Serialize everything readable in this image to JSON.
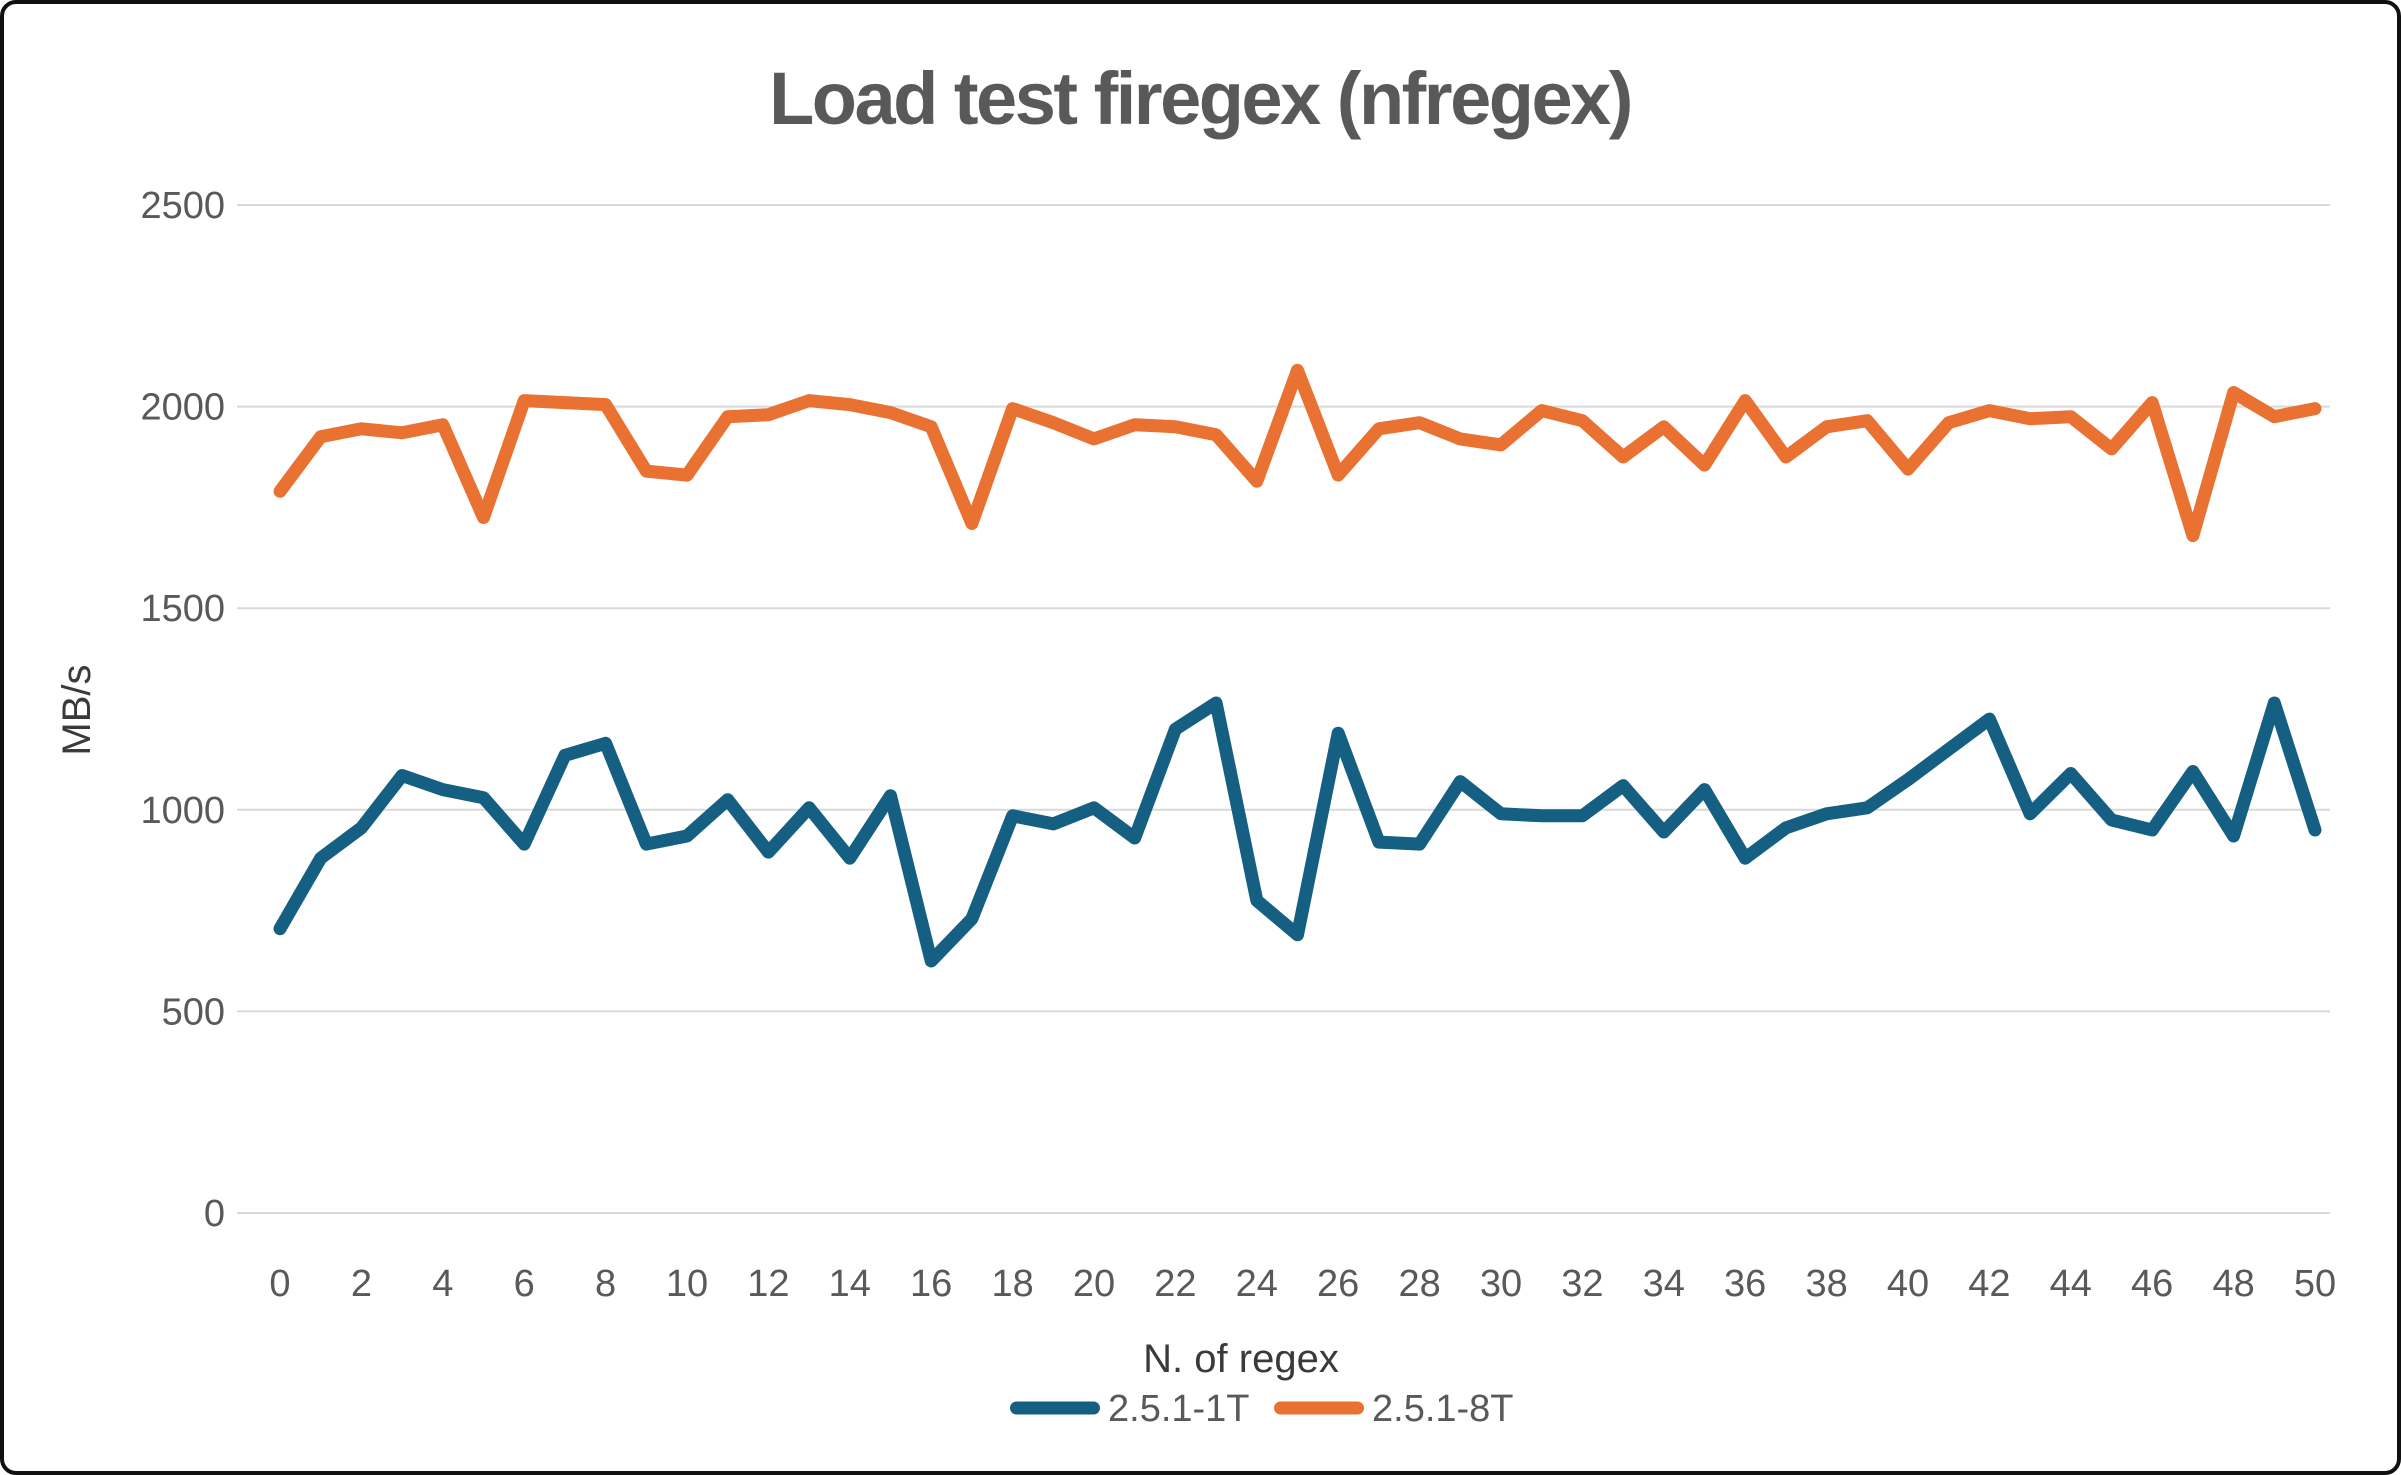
{
  "chart_data": {
    "type": "line",
    "title": "Load test firegex (nfregex)",
    "xlabel": "N. of regex",
    "ylabel": "MB/s",
    "x": [
      0,
      1,
      2,
      3,
      4,
      5,
      6,
      7,
      8,
      9,
      10,
      11,
      12,
      13,
      14,
      15,
      16,
      17,
      18,
      19,
      20,
      21,
      22,
      23,
      24,
      25,
      26,
      27,
      28,
      29,
      30,
      31,
      32,
      33,
      34,
      35,
      36,
      37,
      38,
      39,
      40,
      41,
      42,
      43,
      44,
      45,
      46,
      47,
      48,
      49,
      50
    ],
    "x_tick_labels": [
      0,
      2,
      4,
      6,
      8,
      10,
      12,
      14,
      16,
      18,
      20,
      22,
      24,
      26,
      28,
      30,
      32,
      34,
      36,
      38,
      40,
      42,
      44,
      46,
      48,
      50
    ],
    "y_tick_labels": [
      0,
      500,
      1000,
      1500,
      2000,
      2500
    ],
    "ylim": [
      0,
      2500
    ],
    "grid": "horizontal",
    "gridline_color": "#d9d9d9",
    "background_color": "#ffffff",
    "legend_position": "bottom",
    "series": [
      {
        "name": "2.5.1-1T",
        "color": "#156082",
        "values": [
          705,
          880,
          955,
          1085,
          1050,
          1030,
          915,
          1135,
          1165,
          915,
          935,
          1025,
          895,
          1005,
          880,
          1035,
          625,
          730,
          985,
          965,
          1005,
          930,
          1200,
          1265,
          775,
          690,
          1190,
          920,
          915,
          1070,
          990,
          985,
          985,
          1060,
          945,
          1050,
          880,
          955,
          990,
          1005,
          1075,
          1150,
          1225,
          990,
          1090,
          975,
          950,
          1095,
          935,
          1265,
          950
        ]
      },
      {
        "name": "2.5.1-8T",
        "color": "#e97132",
        "values": [
          1790,
          1925,
          1945,
          1935,
          1955,
          1725,
          2015,
          2010,
          2005,
          1840,
          1830,
          1975,
          1980,
          2015,
          2005,
          1985,
          1950,
          1710,
          1995,
          1960,
          1920,
          1955,
          1950,
          1930,
          1815,
          2090,
          1830,
          1945,
          1960,
          1920,
          1905,
          1990,
          1965,
          1875,
          1950,
          1855,
          2015,
          1875,
          1950,
          1965,
          1845,
          1960,
          1990,
          1970,
          1975,
          1895,
          2010,
          1680,
          2035,
          1975,
          1995
        ]
      }
    ]
  }
}
